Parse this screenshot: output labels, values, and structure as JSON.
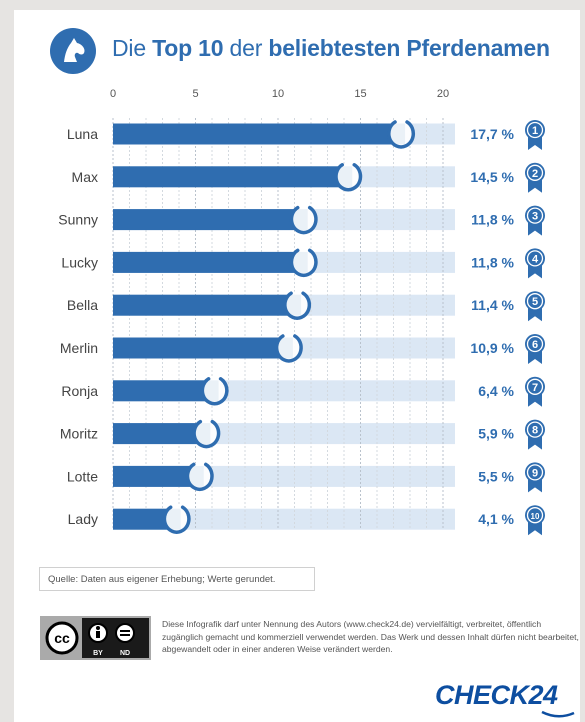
{
  "header": {
    "title_prefix": "Die ",
    "title_bold1": "Top 10",
    "title_mid": " der ",
    "title_bold2": "beliebtesten Pferdenamen",
    "logo_icon": "horse-head-icon"
  },
  "chart_data": {
    "type": "bar",
    "orientation": "horizontal",
    "categories": [
      "Luna",
      "Max",
      "Sunny",
      "Lucky",
      "Bella",
      "Merlin",
      "Ronja",
      "Moritz",
      "Lotte",
      "Lady"
    ],
    "values": [
      17.7,
      14.5,
      11.8,
      11.8,
      11.4,
      10.9,
      6.4,
      5.9,
      5.5,
      4.1
    ],
    "value_labels": [
      "17,7 %",
      "14,5 %",
      "11,8 %",
      "11,8 %",
      "11,4 %",
      "10,9 %",
      "6,4 %",
      "5,9 %",
      "5,5 %",
      "4,1 %"
    ],
    "ranks": [
      "1",
      "2",
      "3",
      "4",
      "5",
      "6",
      "7",
      "8",
      "9",
      "10"
    ],
    "x_ticks": [
      "0",
      "5",
      "10",
      "15",
      "20"
    ],
    "xlim": [
      0,
      20
    ],
    "title": "",
    "xlabel": "",
    "ylabel": "",
    "bar_color": "#2f6db0",
    "track_color": "#dbe7f4",
    "grid": true
  },
  "source": {
    "text": "Quelle: Daten aus eigener Erhebung; Werte gerundet."
  },
  "license": {
    "text": "Diese Infografik darf unter Nennung des Autors (www.check24.de) vervielfältigt, verbreitet, öffentlich zugänglich gemacht und kommerziell verwendet werden. Das Werk und dessen Inhalt dürfen nicht bearbeitet, abgewandelt oder in einer anderen Weise verändert werden.",
    "cc": "cc",
    "by": "BY",
    "nd": "ND"
  },
  "brand": {
    "name": "CHECK24",
    "color": "#0d4ea0"
  }
}
